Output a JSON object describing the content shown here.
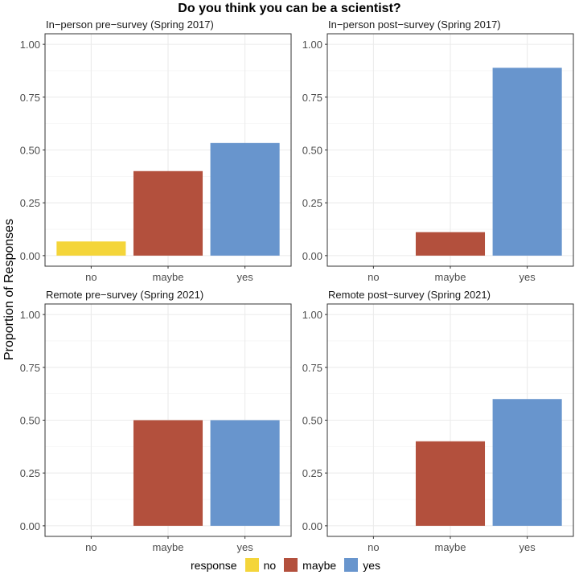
{
  "chart_data": {
    "type": "bar",
    "title": "Do you think you can be a scientist?",
    "ylabel": "Proportion of Responses",
    "categories": [
      "no",
      "maybe",
      "yes"
    ],
    "ylim": [
      0,
      1
    ],
    "yticks": [
      "0.00",
      "0.25",
      "0.50",
      "0.75",
      "1.00"
    ],
    "colors": {
      "no": "#F4D53A",
      "maybe": "#B3503D",
      "yes": "#6895CD"
    },
    "legend": {
      "title": "response",
      "position": "bottom",
      "entries": [
        "no",
        "maybe",
        "yes"
      ]
    },
    "grid": true,
    "facets": [
      {
        "title": "In−person pre−survey (Spring 2017)",
        "values": [
          0.067,
          0.4,
          0.533
        ]
      },
      {
        "title": "In−person post−survey (Spring 2017)",
        "values": [
          0,
          0.111,
          0.889
        ]
      },
      {
        "title": "Remote pre−survey (Spring 2021)",
        "values": [
          0,
          0.5,
          0.5
        ]
      },
      {
        "title": "Remote post−survey (Spring 2021)",
        "values": [
          0,
          0.4,
          0.6
        ]
      }
    ]
  }
}
